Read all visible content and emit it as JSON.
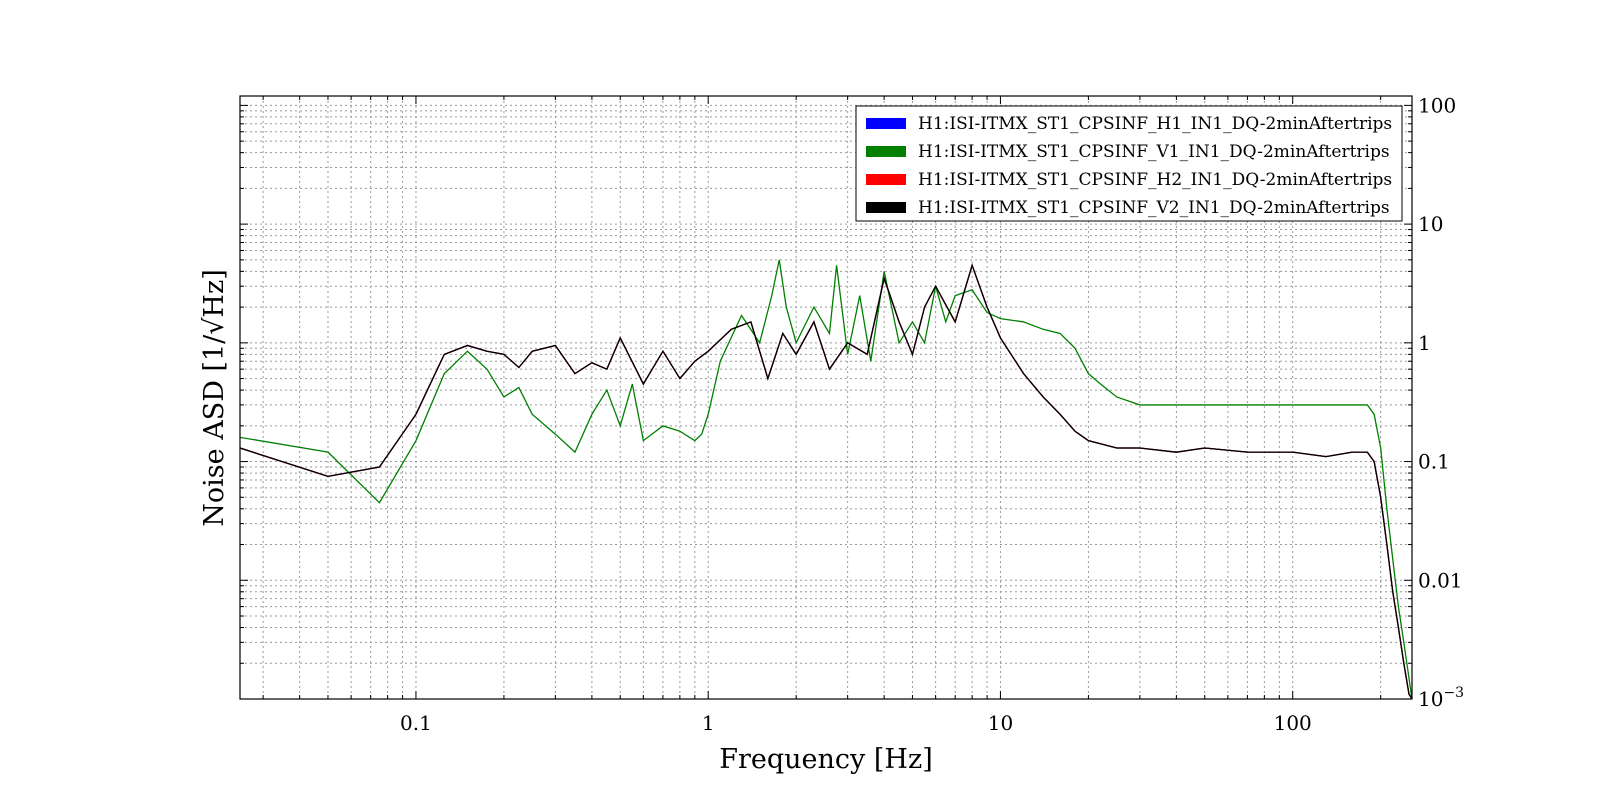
{
  "chart_data": {
    "type": "line",
    "xlabel": "Frequency [Hz]",
    "ylabel": "Noise ASD [1/√Hz]",
    "x_scale": "log",
    "y_scale": "log",
    "xlim": [
      0.025,
      256
    ],
    "ylim": [
      0.001,
      120
    ],
    "grid": true,
    "legend_position": "top-right",
    "x_ticks": [
      {
        "value": 0.1,
        "label": "0.1"
      },
      {
        "value": 1,
        "label": "1"
      },
      {
        "value": 10,
        "label": "10"
      },
      {
        "value": 100,
        "label": "100"
      }
    ],
    "y_ticks": [
      {
        "value": 100,
        "label": "100"
      },
      {
        "value": 10,
        "label": "10"
      },
      {
        "value": 1,
        "label": "1"
      },
      {
        "value": 0.1,
        "label": "0.1"
      },
      {
        "value": 0.01,
        "label": "0.01"
      },
      {
        "value": 0.001,
        "label": "10",
        "sup": "−3"
      }
    ],
    "series": [
      {
        "name": "H1:ISI-ITMX_ST1_CPSINF_H1_IN1_DQ-2minAftertrips",
        "color": "#0000ff",
        "x": [
          0.025,
          0.05,
          0.075,
          0.1,
          0.125,
          0.15,
          0.175,
          0.2,
          0.225,
          0.25,
          0.3,
          0.35,
          0.4,
          0.45,
          0.5,
          0.6,
          0.7,
          0.8,
          0.9,
          1.0,
          1.2,
          1.4,
          1.6,
          1.8,
          2.0,
          2.3,
          2.6,
          3.0,
          3.5,
          4.0,
          4.5,
          5.0,
          5.5,
          6.0,
          7.0,
          8.0,
          9.0,
          10,
          12,
          14,
          16,
          18,
          20,
          25,
          30,
          40,
          50,
          70,
          100,
          130,
          160,
          180,
          190,
          200,
          210,
          220,
          230,
          240,
          250,
          256
        ],
        "y": [
          0.13,
          0.075,
          0.09,
          0.25,
          0.8,
          0.95,
          0.85,
          0.8,
          0.62,
          0.85,
          0.95,
          0.55,
          0.68,
          0.6,
          1.1,
          0.45,
          0.85,
          0.5,
          0.7,
          0.85,
          1.3,
          1.5,
          0.5,
          1.2,
          0.8,
          1.5,
          0.6,
          1.0,
          0.8,
          3.5,
          1.5,
          0.8,
          2.0,
          3.0,
          1.5,
          4.5,
          2.0,
          1.1,
          0.55,
          0.35,
          0.25,
          0.18,
          0.15,
          0.13,
          0.13,
          0.12,
          0.13,
          0.12,
          0.12,
          0.11,
          0.12,
          0.12,
          0.1,
          0.05,
          0.02,
          0.008,
          0.004,
          0.002,
          0.0011,
          0.001
        ]
      },
      {
        "name": "H1:ISI-ITMX_ST1_CPSINF_V1_IN1_DQ-2minAftertrips",
        "color": "#008000",
        "x": [
          0.025,
          0.05,
          0.075,
          0.1,
          0.125,
          0.15,
          0.175,
          0.2,
          0.225,
          0.25,
          0.3,
          0.35,
          0.4,
          0.45,
          0.5,
          0.55,
          0.6,
          0.7,
          0.8,
          0.9,
          0.95,
          1.0,
          1.1,
          1.3,
          1.5,
          1.65,
          1.75,
          1.85,
          2.0,
          2.3,
          2.6,
          2.75,
          3.0,
          3.3,
          3.6,
          4.0,
          4.5,
          5.0,
          5.5,
          6.0,
          6.5,
          7.0,
          8.0,
          9.0,
          10,
          12,
          14,
          16,
          18,
          20,
          22,
          25,
          30,
          40,
          50,
          70,
          100,
          130,
          160,
          180,
          190,
          200,
          210,
          220,
          230,
          240,
          250,
          256
        ],
        "y": [
          0.16,
          0.12,
          0.045,
          0.15,
          0.55,
          0.85,
          0.6,
          0.35,
          0.42,
          0.25,
          0.17,
          0.12,
          0.25,
          0.4,
          0.2,
          0.45,
          0.15,
          0.2,
          0.18,
          0.15,
          0.17,
          0.25,
          0.7,
          1.7,
          1.0,
          2.5,
          5.0,
          2.0,
          1.0,
          2.0,
          1.2,
          4.5,
          0.8,
          2.5,
          0.7,
          4.0,
          1.0,
          1.5,
          1.0,
          3.0,
          1.5,
          2.5,
          2.8,
          1.8,
          1.6,
          1.5,
          1.3,
          1.2,
          0.9,
          0.55,
          0.45,
          0.35,
          0.3,
          0.3,
          0.3,
          0.3,
          0.3,
          0.3,
          0.3,
          0.3,
          0.25,
          0.13,
          0.04,
          0.015,
          0.006,
          0.003,
          0.0015,
          0.001
        ]
      },
      {
        "name": "H1:ISI-ITMX_ST1_CPSINF_H2_IN1_DQ-2minAftertrips",
        "color": "#ff0000",
        "x": [
          0.025,
          0.05,
          0.075,
          0.1,
          0.125,
          0.15,
          0.175,
          0.2,
          0.225,
          0.25,
          0.3,
          0.35,
          0.4,
          0.45,
          0.5,
          0.6,
          0.7,
          0.8,
          0.9,
          1.0,
          1.2,
          1.4,
          1.6,
          1.8,
          2.0,
          2.3,
          2.6,
          3.0,
          3.5,
          4.0,
          4.5,
          5.0,
          5.5,
          6.0,
          7.0,
          8.0,
          9.0,
          10,
          12,
          14,
          16,
          18,
          20,
          25,
          30,
          40,
          50,
          70,
          100,
          130,
          160,
          180,
          190,
          200,
          210,
          220,
          230,
          240,
          250,
          256
        ],
        "y": [
          0.13,
          0.075,
          0.09,
          0.25,
          0.8,
          0.95,
          0.85,
          0.8,
          0.62,
          0.85,
          0.95,
          0.55,
          0.68,
          0.6,
          1.1,
          0.45,
          0.85,
          0.5,
          0.7,
          0.85,
          1.3,
          1.5,
          0.5,
          1.2,
          0.8,
          1.5,
          0.6,
          1.0,
          0.8,
          3.5,
          1.5,
          0.8,
          2.0,
          3.0,
          1.5,
          4.5,
          2.0,
          1.1,
          0.55,
          0.35,
          0.25,
          0.18,
          0.15,
          0.13,
          0.13,
          0.12,
          0.13,
          0.12,
          0.12,
          0.11,
          0.12,
          0.12,
          0.1,
          0.05,
          0.02,
          0.008,
          0.004,
          0.002,
          0.0011,
          0.001
        ]
      },
      {
        "name": "H1:ISI-ITMX_ST1_CPSINF_V2_IN1_DQ-2minAftertrips",
        "color": "#000000",
        "x": [
          0.025,
          0.05,
          0.075,
          0.1,
          0.125,
          0.15,
          0.175,
          0.2,
          0.225,
          0.25,
          0.3,
          0.35,
          0.4,
          0.45,
          0.5,
          0.6,
          0.7,
          0.8,
          0.9,
          1.0,
          1.2,
          1.4,
          1.6,
          1.8,
          2.0,
          2.3,
          2.6,
          3.0,
          3.5,
          4.0,
          4.5,
          5.0,
          5.5,
          6.0,
          7.0,
          8.0,
          9.0,
          10,
          12,
          14,
          16,
          18,
          20,
          25,
          30,
          40,
          50,
          70,
          100,
          130,
          160,
          180,
          190,
          200,
          210,
          220,
          230,
          240,
          250,
          256
        ],
        "y": [
          0.13,
          0.075,
          0.09,
          0.25,
          0.8,
          0.95,
          0.85,
          0.8,
          0.62,
          0.85,
          0.95,
          0.55,
          0.68,
          0.6,
          1.1,
          0.45,
          0.85,
          0.5,
          0.7,
          0.85,
          1.3,
          1.5,
          0.5,
          1.2,
          0.8,
          1.5,
          0.6,
          1.0,
          0.8,
          3.5,
          1.5,
          0.8,
          2.0,
          3.0,
          1.5,
          4.5,
          2.0,
          1.1,
          0.55,
          0.35,
          0.25,
          0.18,
          0.15,
          0.13,
          0.13,
          0.12,
          0.13,
          0.12,
          0.12,
          0.11,
          0.12,
          0.12,
          0.1,
          0.05,
          0.02,
          0.008,
          0.004,
          0.002,
          0.0011,
          0.001
        ]
      }
    ]
  }
}
